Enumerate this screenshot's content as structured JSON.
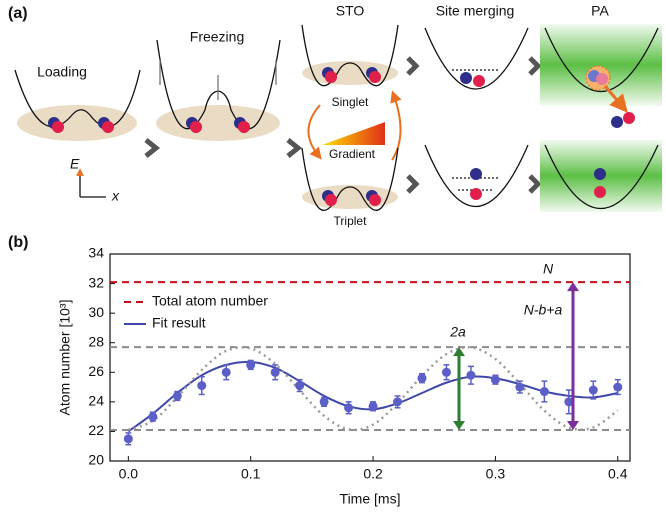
{
  "panel_a": {
    "label": "(a)",
    "stages": [
      "Loading",
      "Freezing",
      "STO",
      "Site merging",
      "PA"
    ],
    "singlet": "Singlet",
    "triplet": "Triplet",
    "gradient": "Gradient",
    "axis_e": "E",
    "axis_x": "x"
  },
  "chart_data": {
    "type": "scatter",
    "panel_label": "(b)",
    "xlabel": "Time [ms]",
    "ylabel": "Atom number [10³]",
    "x": [
      0,
      0.02,
      0.04,
      0.06,
      0.08,
      0.1,
      0.12,
      0.14,
      0.16,
      0.18,
      0.2,
      0.22,
      0.24,
      0.26,
      0.28,
      0.3,
      0.32,
      0.34,
      0.36,
      0.38,
      0.4
    ],
    "points": {
      "color": "#5b5fc7",
      "values": [
        21.5,
        23.0,
        24.4,
        25.1,
        26.0,
        26.5,
        26.0,
        25.1,
        24.0,
        23.6,
        23.7,
        24.0,
        25.6,
        26.0,
        25.8,
        25.5,
        25.0,
        24.7,
        24.0,
        24.8,
        25.0
      ],
      "errors": [
        0.4,
        0.3,
        0.3,
        0.6,
        0.5,
        0.3,
        0.5,
        0.4,
        0.3,
        0.4,
        0.3,
        0.4,
        0.3,
        0.5,
        0.6,
        0.3,
        0.4,
        0.7,
        0.8,
        0.6,
        0.5
      ]
    },
    "series": [
      {
        "name": "Fit result",
        "color": "#3f48a8",
        "style": "solid",
        "values": [
          22.0,
          23.2,
          24.6,
          25.8,
          26.5,
          26.7,
          26.3,
          25.4,
          24.4,
          23.7,
          23.5,
          23.9,
          24.6,
          25.3,
          25.7,
          25.6,
          25.2,
          24.7,
          24.4,
          24.3,
          24.6
        ]
      },
      {
        "color": "#999999",
        "style": "dotted",
        "values": [
          22.1,
          22.72,
          24.31,
          26.16,
          27.45,
          27.61,
          26.57,
          24.78,
          23.05,
          22.14,
          22.46,
          23.91,
          25.75,
          27.23,
          27.69,
          26.9,
          25.22,
          23.41,
          22.26,
          22.27,
          23.42
        ]
      }
    ],
    "hlines": [
      {
        "name": "Total atom number",
        "value": 32.1,
        "color": "#c0101a"
      },
      {
        "value": 27.7,
        "color": "#8c8c8c"
      },
      {
        "value": 22.1,
        "color": "#8c8c8c"
      }
    ],
    "annotations": [
      {
        "text": "N",
        "color": "#c0101a"
      },
      {
        "text": "2a",
        "color": "#2e7d32"
      },
      {
        "text": "N-b+a",
        "color": "#7b2f9e"
      }
    ],
    "xlim": [
      -0.015,
      0.41
    ],
    "ylim": [
      20,
      34
    ],
    "xticks": [
      {
        "value": 0,
        "label": "0.0"
      },
      0.1,
      0.2,
      0.3,
      0.4
    ],
    "yticks": [
      20,
      22,
      24,
      26,
      28,
      30,
      32,
      34
    ]
  }
}
